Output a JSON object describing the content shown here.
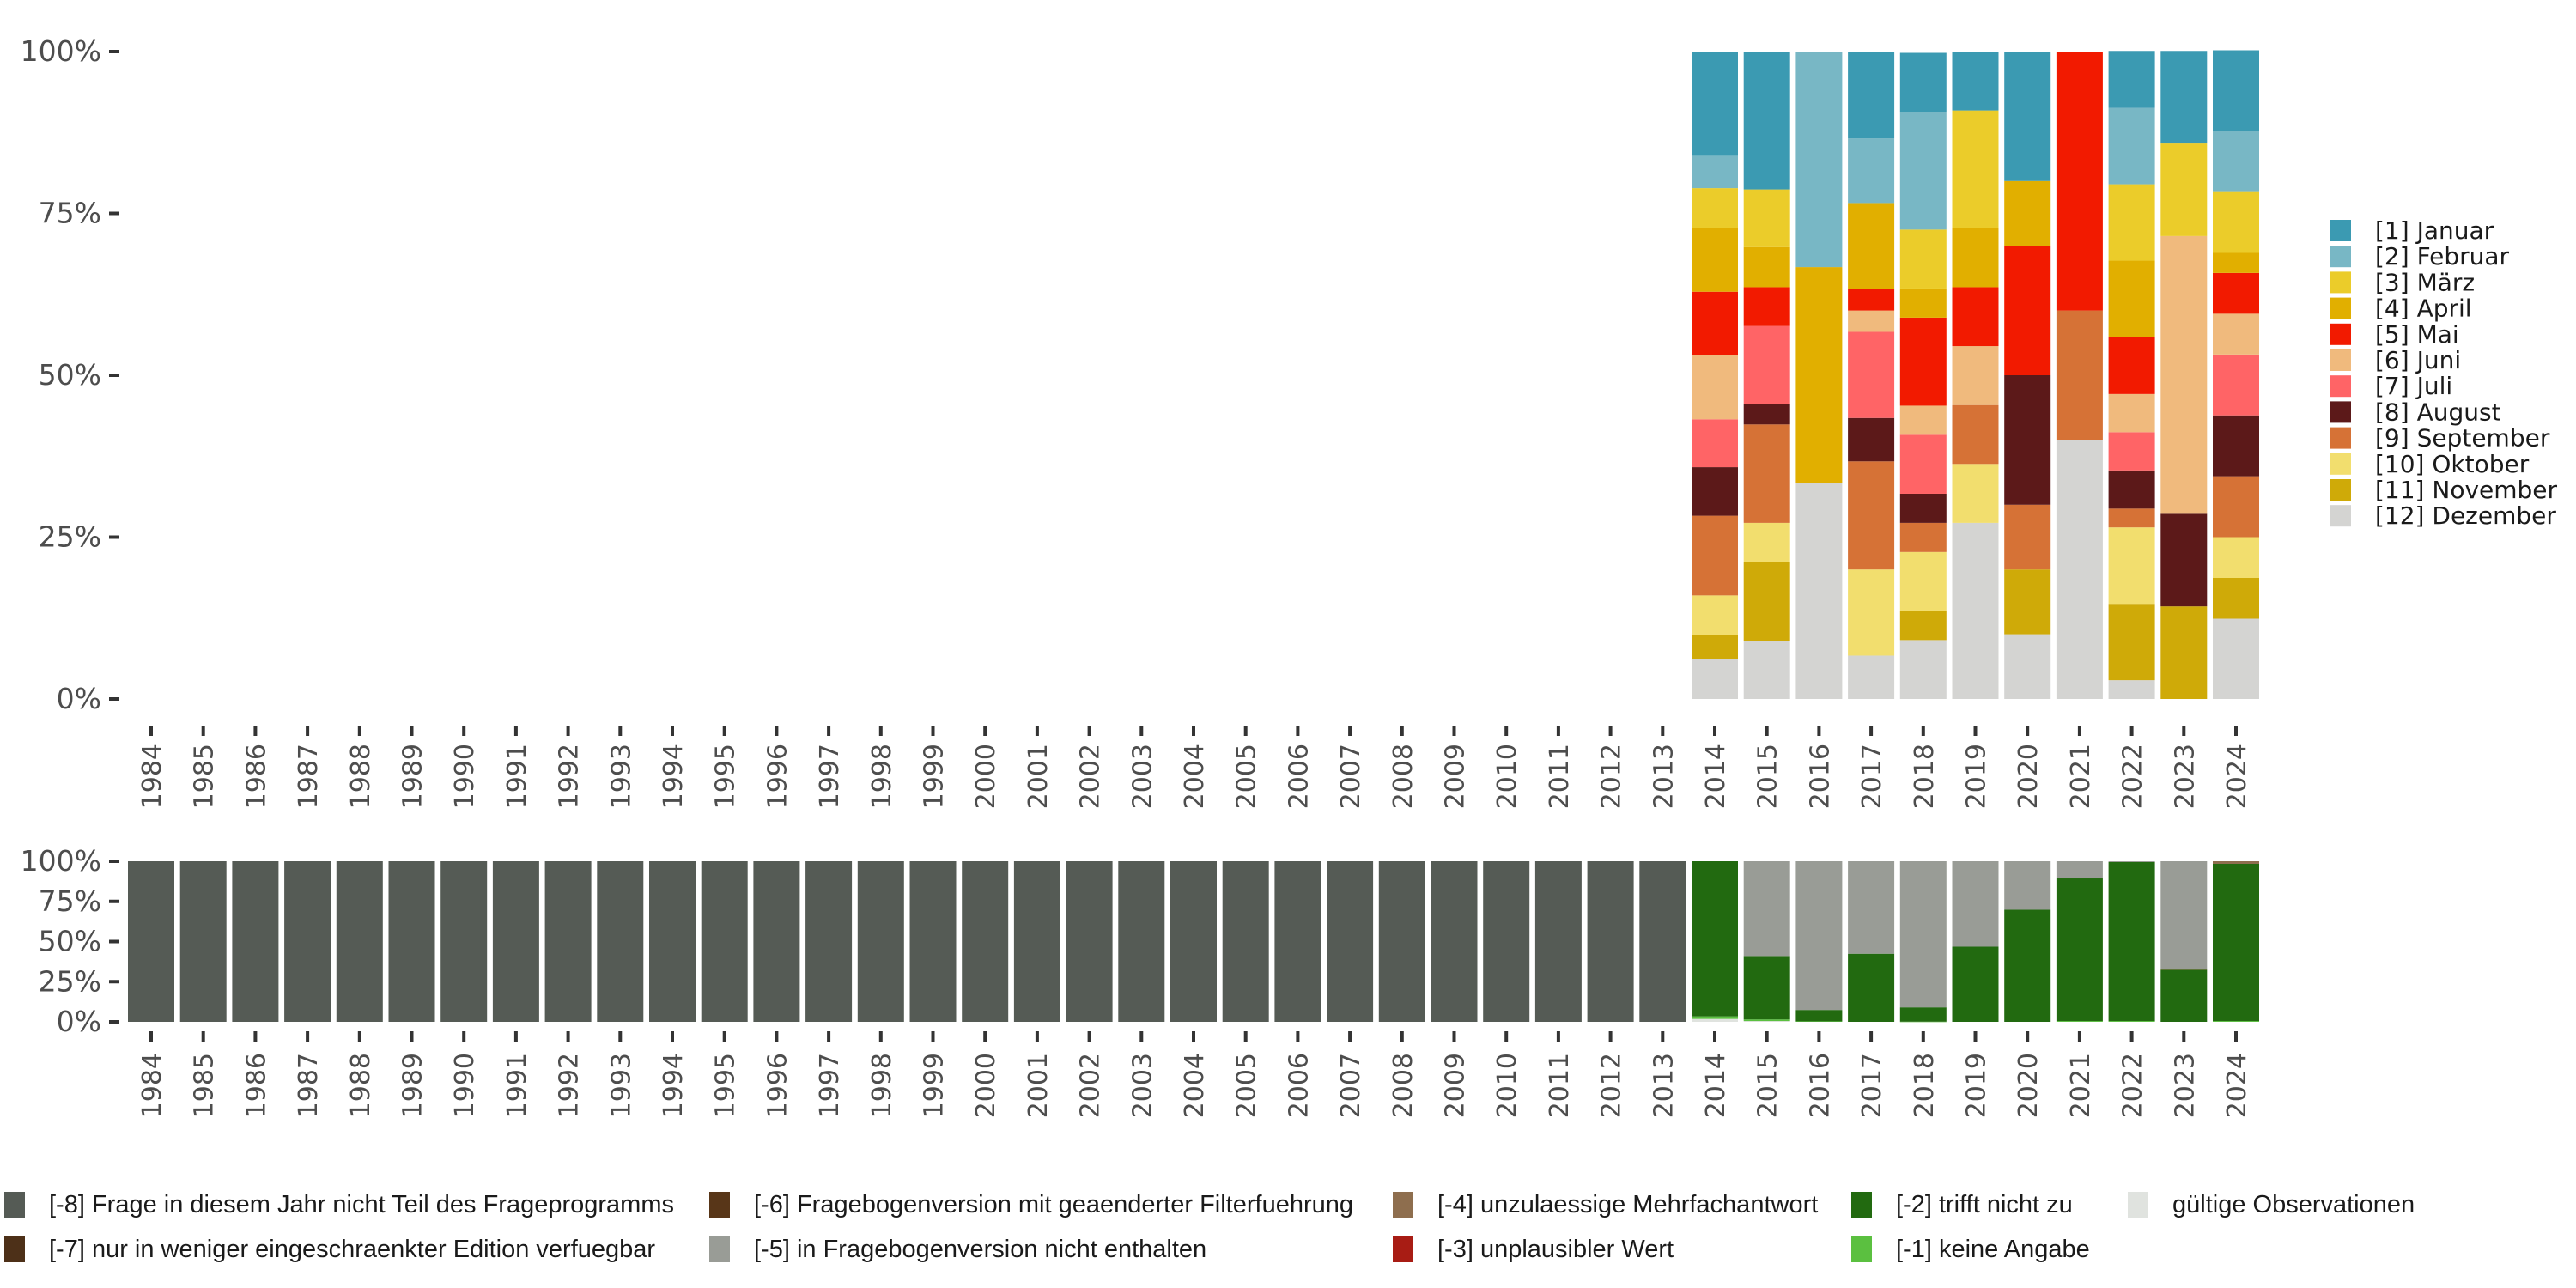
{
  "chart_data": [
    {
      "type": "bar",
      "stacked": true,
      "title": "",
      "xlabel": "",
      "ylabel": "",
      "ylim": [
        0,
        100
      ],
      "y_ticks": [
        "0%",
        "25%",
        "50%",
        "75%",
        "100%"
      ],
      "grid": false,
      "legend_position": "right",
      "categories": [
        "1984",
        "1985",
        "1986",
        "1987",
        "1988",
        "1989",
        "1990",
        "1991",
        "1992",
        "1993",
        "1994",
        "1995",
        "1996",
        "1997",
        "1998",
        "1999",
        "2000",
        "2001",
        "2002",
        "2003",
        "2004",
        "2005",
        "2006",
        "2007",
        "2008",
        "2009",
        "2010",
        "2011",
        "2012",
        "2013",
        "2014",
        "2015",
        "2016",
        "2017",
        "2018",
        "2019",
        "2020",
        "2021",
        "2022",
        "2023",
        "2024"
      ],
      "series": [
        {
          "name": "[1] Januar",
          "color": "#3B9AB2",
          "values": {
            "2014": 16.1,
            "2015": 21.3,
            "2016": 0,
            "2017": 13.3,
            "2018": 9.1,
            "2019": 9.1,
            "2020": 20,
            "2021": 0,
            "2022": 8.8,
            "2023": 14.3,
            "2024": 12.5
          }
        },
        {
          "name": "[2] Februar",
          "color": "#78B7C5",
          "values": {
            "2014": 5.0,
            "2015": 0,
            "2016": 33.3,
            "2017": 10.0,
            "2018": 18.2,
            "2019": 0,
            "2020": 0,
            "2021": 0,
            "2022": 11.8,
            "2023": 0,
            "2024": 9.4
          }
        },
        {
          "name": "[3] März",
          "color": "#EBCC2A",
          "values": {
            "2014": 6.1,
            "2015": 8.9,
            "2016": 0,
            "2017": 0,
            "2018": 9.1,
            "2019": 18.2,
            "2020": 0,
            "2021": 0,
            "2022": 11.8,
            "2023": 14.3,
            "2024": 9.4
          }
        },
        {
          "name": "[4] April",
          "color": "#E1AF00",
          "values": {
            "2014": 9.9,
            "2015": 6.2,
            "2016": 33.3,
            "2017": 13.3,
            "2018": 4.5,
            "2019": 9.1,
            "2020": 10,
            "2021": 0,
            "2022": 11.8,
            "2023": 0,
            "2024": 3.1
          }
        },
        {
          "name": "[5] Mai",
          "color": "#F21A00",
          "values": {
            "2014": 9.8,
            "2015": 6.0,
            "2016": 0,
            "2017": 3.3,
            "2018": 13.6,
            "2019": 9.1,
            "2020": 20,
            "2021": 40,
            "2022": 8.8,
            "2023": 0,
            "2024": 6.3
          }
        },
        {
          "name": "[6] Juni",
          "color": "#F0BA7D",
          "values": {
            "2014": 9.9,
            "2015": 0,
            "2016": 0,
            "2017": 3.3,
            "2018": 4.5,
            "2019": 9.1,
            "2020": 0,
            "2021": 0,
            "2022": 5.9,
            "2023": 42.9,
            "2024": 6.3
          }
        },
        {
          "name": "[7] Juli",
          "color": "#FF6466",
          "values": {
            "2014": 7.4,
            "2015": 12.1,
            "2016": 0,
            "2017": 13.3,
            "2018": 9.1,
            "2019": 0,
            "2020": 0,
            "2021": 0,
            "2022": 5.9,
            "2023": 0,
            "2024": 9.4
          }
        },
        {
          "name": "[8] August",
          "color": "#5C1919",
          "values": {
            "2014": 7.5,
            "2015": 3.1,
            "2016": 0,
            "2017": 6.7,
            "2018": 4.5,
            "2019": 0,
            "2020": 20,
            "2021": 0,
            "2022": 5.9,
            "2023": 14.3,
            "2024": 9.4
          }
        },
        {
          "name": "[9] September",
          "color": "#D67236",
          "values": {
            "2014": 12.3,
            "2015": 15.2,
            "2016": 0,
            "2017": 16.7,
            "2018": 4.5,
            "2019": 9.1,
            "2020": 10,
            "2021": 20,
            "2022": 2.9,
            "2023": 0,
            "2024": 9.4
          }
        },
        {
          "name": "[10] Oktober",
          "color": "#F2DE6E",
          "values": {
            "2014": 6.1,
            "2015": 6.0,
            "2016": 0,
            "2017": 13.3,
            "2018": 9.1,
            "2019": 9.1,
            "2020": 0,
            "2021": 0,
            "2022": 11.8,
            "2023": 0,
            "2024": 6.3
          }
        },
        {
          "name": "[11] November",
          "color": "#CFAA08",
          "values": {
            "2014": 3.8,
            "2015": 12.2,
            "2016": 0,
            "2017": 0,
            "2018": 4.5,
            "2019": 0,
            "2020": 10,
            "2021": 0,
            "2022": 11.8,
            "2023": 14.3,
            "2024": 6.3
          }
        },
        {
          "name": "[12] Dezember",
          "color": "#D4D4D2",
          "values": {
            "2014": 6.1,
            "2015": 9.0,
            "2016": 33.4,
            "2017": 6.7,
            "2018": 9.1,
            "2019": 27.2,
            "2020": 10,
            "2021": 40,
            "2022": 2.9,
            "2023": 0,
            "2024": 12.4
          }
        }
      ]
    },
    {
      "type": "bar",
      "stacked": true,
      "title": "",
      "xlabel": "",
      "ylabel": "",
      "ylim": [
        0,
        100
      ],
      "y_ticks": [
        "0%",
        "25%",
        "50%",
        "75%",
        "100%"
      ],
      "grid": false,
      "legend_position": "bottom",
      "categories": [
        "1984",
        "1985",
        "1986",
        "1987",
        "1988",
        "1989",
        "1990",
        "1991",
        "1992",
        "1993",
        "1994",
        "1995",
        "1996",
        "1997",
        "1998",
        "1999",
        "2000",
        "2001",
        "2002",
        "2003",
        "2004",
        "2005",
        "2006",
        "2007",
        "2008",
        "2009",
        "2010",
        "2011",
        "2012",
        "2013",
        "2014",
        "2015",
        "2016",
        "2017",
        "2018",
        "2019",
        "2020",
        "2021",
        "2022",
        "2023",
        "2024"
      ],
      "stack_order_bottom_to_top": [
        "gültige Observationen",
        "[-1] keine Angabe",
        "[-2] trifft nicht zu",
        "[-3] unplausibler Wert",
        "[-4] unzulaessige Mehrfachantwort",
        "[-5] in Fragebogenversion nicht enthalten",
        "[-6] Fragebogenversion mit geaenderter Filterfuehrung",
        "[-7] nur in weniger eingeschraenkter Edition verfuegbar",
        "[-8] Frage in diesem Jahr nicht Teil des Frageprogramms"
      ],
      "series": [
        {
          "name": "[-8] Frage in diesem Jahr nicht Teil des Frageprogramms",
          "color": "#555B55",
          "values": {
            "1984": 100,
            "1985": 100,
            "1986": 100,
            "1987": 100,
            "1988": 100,
            "1989": 100,
            "1990": 100,
            "1991": 100,
            "1992": 100,
            "1993": 100,
            "1994": 100,
            "1995": 100,
            "1996": 100,
            "1997": 100,
            "1998": 100,
            "1999": 100,
            "2000": 100,
            "2001": 100,
            "2002": 100,
            "2003": 100,
            "2004": 100,
            "2005": 100,
            "2006": 100,
            "2007": 100,
            "2008": 100,
            "2009": 100,
            "2010": 100,
            "2011": 100,
            "2012": 100,
            "2013": 100
          }
        },
        {
          "name": "[-7] nur in weniger eingeschraenkter Edition verfuegbar",
          "color": "#4D3018",
          "values": {}
        },
        {
          "name": "[-6] Fragebogenversion mit geaenderter Filterfuehrung",
          "color": "#583618",
          "values": {}
        },
        {
          "name": "[-5] in Fragebogenversion nicht enthalten",
          "color": "#999C96",
          "values": {
            "2015": 59.0,
            "2016": 92.6,
            "2017": 57.6,
            "2018": 91.0,
            "2019": 53.2,
            "2020": 30.2,
            "2021": 10.7,
            "2022": 0.5,
            "2023": 67.1
          }
        },
        {
          "name": "[-4] unzulaessige Mehrfachantwort",
          "color": "#8E6E4E",
          "values": {
            "2023": 0.5,
            "2024": 1.6
          }
        },
        {
          "name": "[-3] unplausibler Wert",
          "color": "#A81C14",
          "values": {}
        },
        {
          "name": "[-2] trifft nicht zu",
          "color": "#226A10",
          "values": {
            "2014": 96.6,
            "2015": 39.5,
            "2016": 7.1,
            "2017": 42.4,
            "2018": 8.9,
            "2019": 46.8,
            "2020": 69.8,
            "2021": 88.8,
            "2022": 99.0,
            "2023": 32.4,
            "2024": 97.9
          }
        },
        {
          "name": "[-1] keine Angabe",
          "color": "#5BC040",
          "values": {
            "2014": 1.6,
            "2015": 1.0,
            "2016": 0.3,
            "2018": 0.1,
            "2021": 0.5,
            "2022": 0.5,
            "2023": 0.0,
            "2024": 0.5
          }
        },
        {
          "name": "gültige Observationen",
          "color": "#E0E3DF",
          "values": {
            "2014": 1.8,
            "2015": 0.5
          }
        }
      ]
    }
  ],
  "top_legend": [
    {
      "label": "[1] Januar",
      "color": "#3B9AB2"
    },
    {
      "label": "[2] Februar",
      "color": "#78B7C5"
    },
    {
      "label": "[3] März",
      "color": "#EBCC2A"
    },
    {
      "label": "[4] April",
      "color": "#E1AF00"
    },
    {
      "label": "[5] Mai",
      "color": "#F21A00"
    },
    {
      "label": "[6] Juni",
      "color": "#F0BA7D"
    },
    {
      "label": "[7] Juli",
      "color": "#FF6466"
    },
    {
      "label": "[8] August",
      "color": "#5C1919"
    },
    {
      "label": "[9] September",
      "color": "#D67236"
    },
    {
      "label": "[10] Oktober",
      "color": "#F2DE6E"
    },
    {
      "label": "[11] November",
      "color": "#CFAA08"
    },
    {
      "label": "[12] Dezember",
      "color": "#D4D4D2"
    }
  ],
  "bottom_legend": [
    {
      "label": "[-8] Frage in diesem Jahr nicht Teil des Frageprogramms",
      "color": "#555B55"
    },
    {
      "label": "[-7] nur in weniger eingeschraenkter Edition verfuegbar",
      "color": "#4D3018"
    },
    {
      "label": "[-6] Fragebogenversion mit geaenderter Filterfuehrung",
      "color": "#583618"
    },
    {
      "label": "[-5] in Fragebogenversion nicht enthalten",
      "color": "#999C96"
    },
    {
      "label": "[-4] unzulaessige Mehrfachantwort",
      "color": "#8E6E4E"
    },
    {
      "label": "[-3] unplausibler Wert",
      "color": "#A81C14"
    },
    {
      "label": "[-2] trifft nicht zu",
      "color": "#226A10"
    },
    {
      "label": "[-1] keine Angabe",
      "color": "#5BC040"
    },
    {
      "label": "gültige Observationen",
      "color": "#E0E3DF"
    }
  ]
}
